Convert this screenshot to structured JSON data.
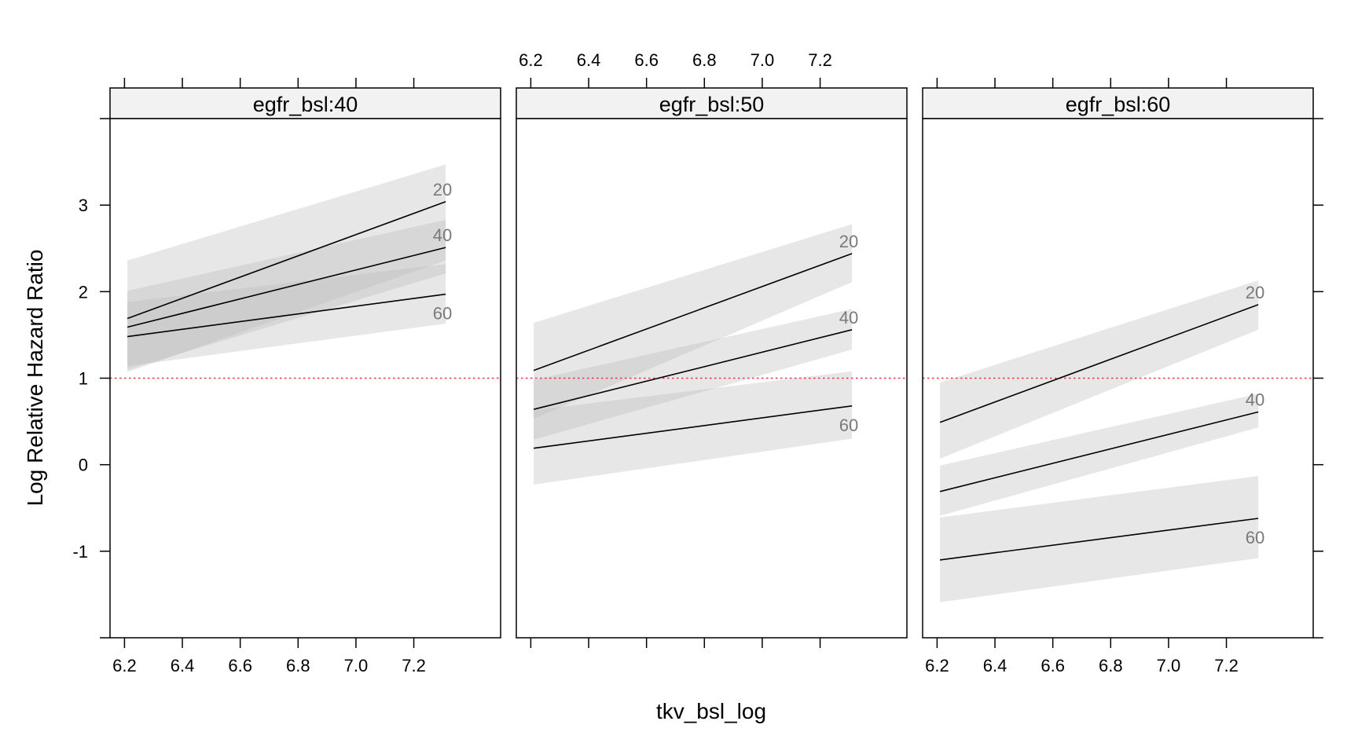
{
  "chart_data": {
    "type": "line",
    "xlabel": "tkv_bsl_log",
    "ylabel": "Log Relative Hazard Ratio",
    "xlim": [
      6.15,
      7.5
    ],
    "ylim": [
      -2.0,
      4.0
    ],
    "x_ticks": [
      "6.2",
      "6.4",
      "6.6",
      "6.8",
      "7.0",
      "7.2"
    ],
    "y_ticks": [
      "3",
      "2",
      "1",
      "0",
      "-1"
    ],
    "reference_line": {
      "y": 1,
      "style": "dotted",
      "color": "#e53935"
    },
    "band_color": "#bdbdbd",
    "line_color": "#000000",
    "label_color": "#7a7a7a",
    "panels": [
      {
        "strip": "egfr_bsl:40",
        "series": [
          {
            "name": "20",
            "x": [
              6.21,
              7.31
            ],
            "y": [
              1.69,
              3.04
            ],
            "lower": [
              1.07,
              2.36
            ],
            "upper": [
              2.36,
              3.47
            ]
          },
          {
            "name": "40",
            "x": [
              6.21,
              7.31
            ],
            "y": [
              1.59,
              2.51
            ],
            "lower": [
              1.1,
              2.21
            ],
            "upper": [
              2.01,
              2.83
            ]
          },
          {
            "name": "60",
            "x": [
              6.21,
              7.31
            ],
            "y": [
              1.48,
              1.97
            ],
            "lower": [
              1.14,
              1.63
            ],
            "upper": [
              1.88,
              2.32
            ]
          }
        ]
      },
      {
        "strip": "egfr_bsl:50",
        "series": [
          {
            "name": "20",
            "x": [
              6.21,
              7.31
            ],
            "y": [
              1.09,
              2.44
            ],
            "lower": [
              0.53,
              2.11
            ],
            "upper": [
              1.64,
              2.78
            ]
          },
          {
            "name": "40",
            "x": [
              6.21,
              7.31
            ],
            "y": [
              0.64,
              1.56
            ],
            "lower": [
              0.29,
              1.33
            ],
            "upper": [
              0.98,
              1.8
            ]
          },
          {
            "name": "60",
            "x": [
              6.21,
              7.31
            ],
            "y": [
              0.19,
              0.68
            ],
            "lower": [
              -0.23,
              0.3
            ],
            "upper": [
              0.63,
              1.08
            ]
          }
        ]
      },
      {
        "strip": "egfr_bsl:60",
        "series": [
          {
            "name": "20",
            "x": [
              6.21,
              7.31
            ],
            "y": [
              0.49,
              1.85
            ],
            "lower": [
              0.07,
              1.56
            ],
            "upper": [
              0.95,
              2.13
            ]
          },
          {
            "name": "40",
            "x": [
              6.21,
              7.31
            ],
            "y": [
              -0.31,
              0.61
            ],
            "lower": [
              -0.59,
              0.43
            ],
            "upper": [
              -0.01,
              0.82
            ]
          },
          {
            "name": "60",
            "x": [
              6.21,
              7.31
            ],
            "y": [
              -1.1,
              -0.62
            ],
            "lower": [
              -1.59,
              -1.08
            ],
            "upper": [
              -0.61,
              -0.13
            ]
          }
        ]
      }
    ]
  }
}
